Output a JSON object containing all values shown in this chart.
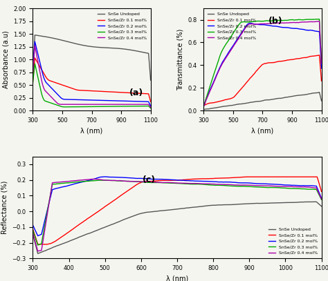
{
  "x_range": [
    300,
    1100
  ],
  "colors": {
    "undoped": "#555555",
    "mol01": "#ff0000",
    "mol02": "#0000ff",
    "mol03": "#00aa00",
    "mol04": "#aa00aa"
  },
  "legend_labels": [
    "SnSe Undoped",
    "SnSe/Zr 0.1 mol%",
    "SnSe/Zr 0.2 mol%",
    "SnSe/Zr 0.3 mol%",
    "SnSe/Zr 0.4 mol%"
  ],
  "panel_labels": [
    "(a)",
    "(b)",
    "(c)"
  ],
  "xlabel": "λ (nm)",
  "ylabel_a": "Absorbance (a.u)",
  "ylabel_b": "Transmittance (%)",
  "ylabel_c": "Reflectance (%)",
  "background": "#f5f5f0"
}
